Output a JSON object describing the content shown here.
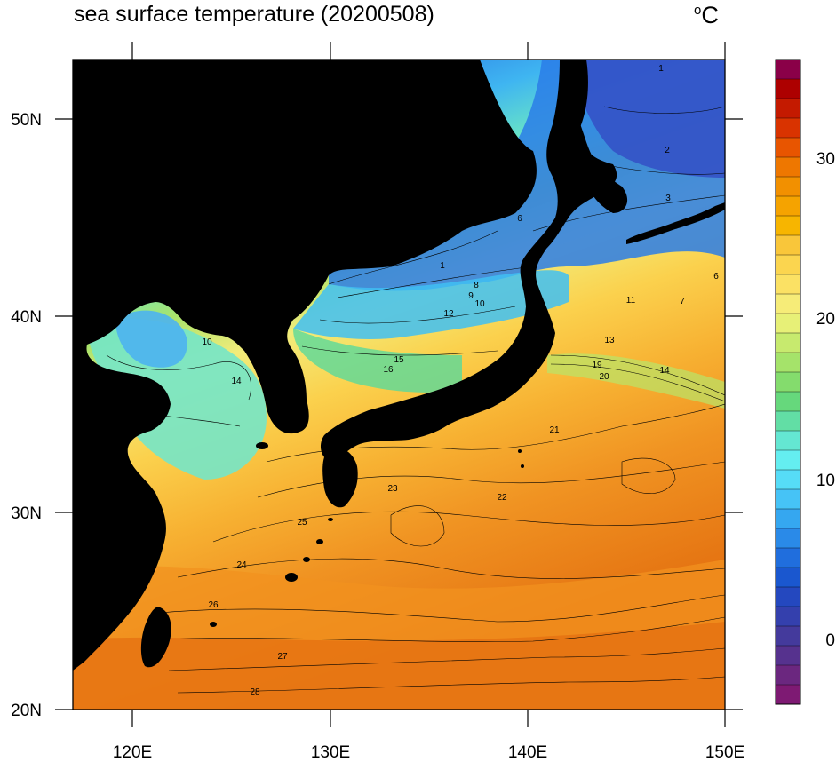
{
  "title": "sea surface temperature (20200508)",
  "unit": "C",
  "unit_prefix": "o",
  "axes": {
    "x_ticks": [
      "120E",
      "130E",
      "140E",
      "150E"
    ],
    "y_ticks": [
      "50N",
      "40N",
      "30N",
      "20N"
    ]
  },
  "colorbar": {
    "labels": [
      "30",
      "20",
      "10",
      "0"
    ],
    "colors": [
      "#8a0048",
      "#ad0000",
      "#c41a00",
      "#d93300",
      "#e85500",
      "#ee7700",
      "#f29000",
      "#f5a300",
      "#f7b500",
      "#f9c63a",
      "#fbd54f",
      "#fbe164",
      "#f6ec78",
      "#e7f077",
      "#c7ea6e",
      "#a5e36a",
      "#84dc6d",
      "#66d87c",
      "#62dea5",
      "#64e7d2",
      "#64eef0",
      "#56dcf7",
      "#46c3f6",
      "#35a7f0",
      "#2a8ae8",
      "#206edd",
      "#1a57cf",
      "#2448bf",
      "#3440ad",
      "#443a9c",
      "#56328e",
      "#6b277f",
      "#7e1a73"
    ]
  },
  "contour_labels": [
    "1",
    "1",
    "2",
    "3",
    "6",
    "6",
    "7",
    "8",
    "9",
    "10",
    "11",
    "12",
    "13",
    "14",
    "15",
    "16",
    "10",
    "14",
    "19",
    "20",
    "21",
    "22",
    "23",
    "24",
    "25",
    "26",
    "27",
    "28"
  ],
  "colors": {
    "land": "#000000",
    "outline": "#000000"
  }
}
